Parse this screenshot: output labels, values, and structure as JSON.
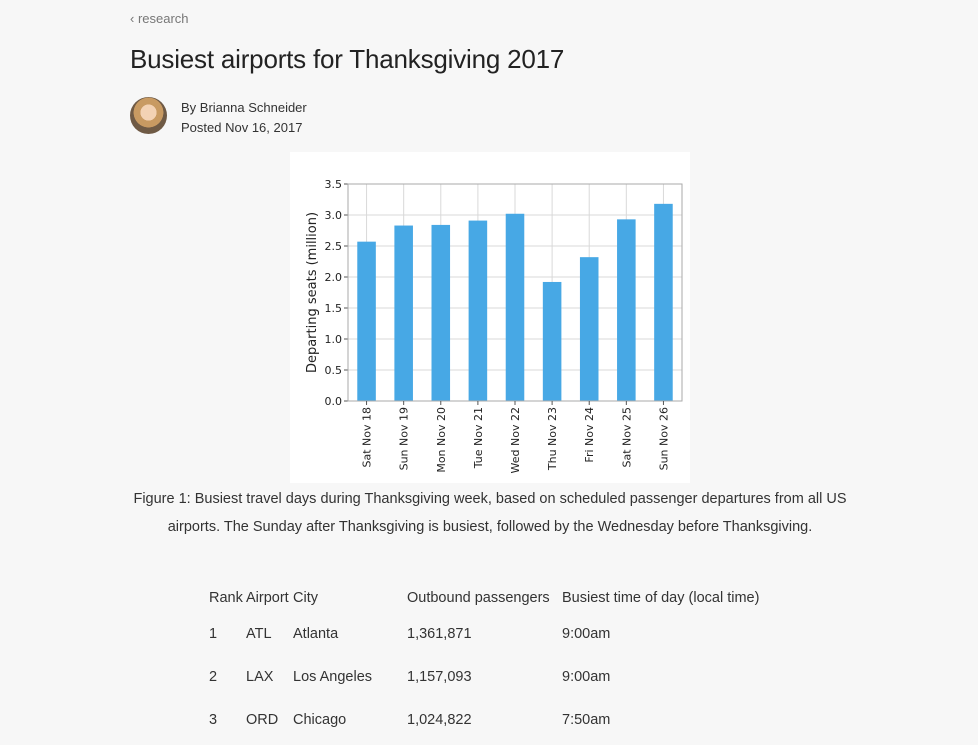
{
  "nav": {
    "back_label": "‹ research"
  },
  "article": {
    "title": "Busiest airports for Thanksgiving 2017",
    "author_line": "By Brianna Schneider",
    "posted_line": "Posted Nov 16, 2017"
  },
  "chart_data": {
    "type": "bar",
    "categories": [
      "Sat Nov 18",
      "Sun Nov 19",
      "Mon Nov 20",
      "Tue Nov 21",
      "Wed Nov 22",
      "Thu Nov 23",
      "Fri Nov 24",
      "Sat Nov 25",
      "Sun Nov 26"
    ],
    "values": [
      2.57,
      2.83,
      2.84,
      2.91,
      3.02,
      1.92,
      2.32,
      2.93,
      3.18
    ],
    "ylabel": "Departing seats (million)",
    "xlabel": "",
    "ylim": [
      0,
      3.5
    ],
    "yticks": [
      "0.0",
      "0.5",
      "1.0",
      "1.5",
      "2.0",
      "2.5",
      "3.0",
      "3.5"
    ],
    "grid": true,
    "bar_color": "#47a8e5"
  },
  "figure": {
    "caption": "Figure 1: Busiest travel days during Thanksgiving week, based on scheduled passenger departures from all US airports. The Sunday after Thanksgiving is busiest, followed by the Wednesday before Thanksgiving."
  },
  "table": {
    "headers": [
      "Rank",
      "Airport",
      "City",
      "Outbound passengers",
      "Busiest time of day (local time)"
    ],
    "rows": [
      [
        "1",
        "ATL",
        "Atlanta",
        "1,361,871",
        "9:00am"
      ],
      [
        "2",
        "LAX",
        "Los Angeles",
        "1,157,093",
        "9:00am"
      ],
      [
        "3",
        "ORD",
        "Chicago",
        "1,024,822",
        "7:50am"
      ]
    ]
  }
}
